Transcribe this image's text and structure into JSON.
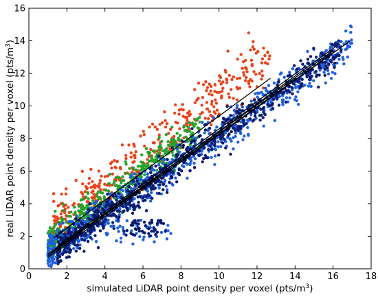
{
  "chart_data": {
    "type": "scatter",
    "title": "",
    "xlabel": "simulated LiDAR point density per voxel (pts/m",
    "xlabel_sup": "3",
    "xlabel_end": ")",
    "ylabel": "real LiDAR point density per voxel (pts/m",
    "ylabel_sup": "3",
    "ylabel_end": ")",
    "xlim": [
      0,
      18
    ],
    "ylim": [
      0,
      16
    ],
    "xticks": [
      "0",
      "2",
      "4",
      "6",
      "8",
      "10",
      "12",
      "14",
      "16",
      "18"
    ],
    "yticks": [
      "0",
      "2",
      "4",
      "6",
      "8",
      "10",
      "12",
      "14",
      "16"
    ],
    "grid": false,
    "legend": "none",
    "series": [
      {
        "color": "#e8431a",
        "x_range": [
          1.3,
          12.7
        ],
        "slope": 0.95,
        "intercept": 1.2,
        "spread": 0.8
      },
      {
        "color": "#22a32a",
        "x_range": [
          1.0,
          9.0
        ],
        "slope": 0.9,
        "intercept": 0.6,
        "spread": 0.55
      },
      {
        "color": "#1f5fe0",
        "x_range": [
          1.0,
          17.0
        ],
        "slope": 0.8,
        "intercept": 0.2,
        "spread": 0.55
      },
      {
        "color": "#0a1a6e",
        "x_range": [
          1.5,
          16.5
        ],
        "slope": 0.82,
        "intercept": 0.0,
        "spread": 0.5
      }
    ],
    "outlier_clusters": [
      {
        "color": "#1f5fe0",
        "x_range": [
          4.0,
          7.5
        ],
        "y_range": [
          1.5,
          3.0
        ]
      },
      {
        "color": "#0a1a6e",
        "x_range": [
          5.0,
          7.2
        ],
        "y_range": [
          2.0,
          3.0
        ]
      }
    ],
    "fit_lines": [
      {
        "x": [
          1.3,
          12.7
        ],
        "y": [
          1.9,
          11.7
        ]
      },
      {
        "x": [
          1.0,
          16.9
        ],
        "y": [
          0.7,
          14.0
        ]
      },
      {
        "x": [
          1.0,
          16.0
        ],
        "y": [
          0.9,
          13.4
        ]
      },
      {
        "x": [
          1.2,
          15.8
        ],
        "y": [
          1.0,
          13.1
        ]
      },
      {
        "x": [
          1.5,
          14.5
        ],
        "y": [
          1.4,
          12.4
        ]
      },
      {
        "x": [
          1.0,
          16.2
        ],
        "y": [
          0.8,
          13.7
        ]
      }
    ]
  }
}
